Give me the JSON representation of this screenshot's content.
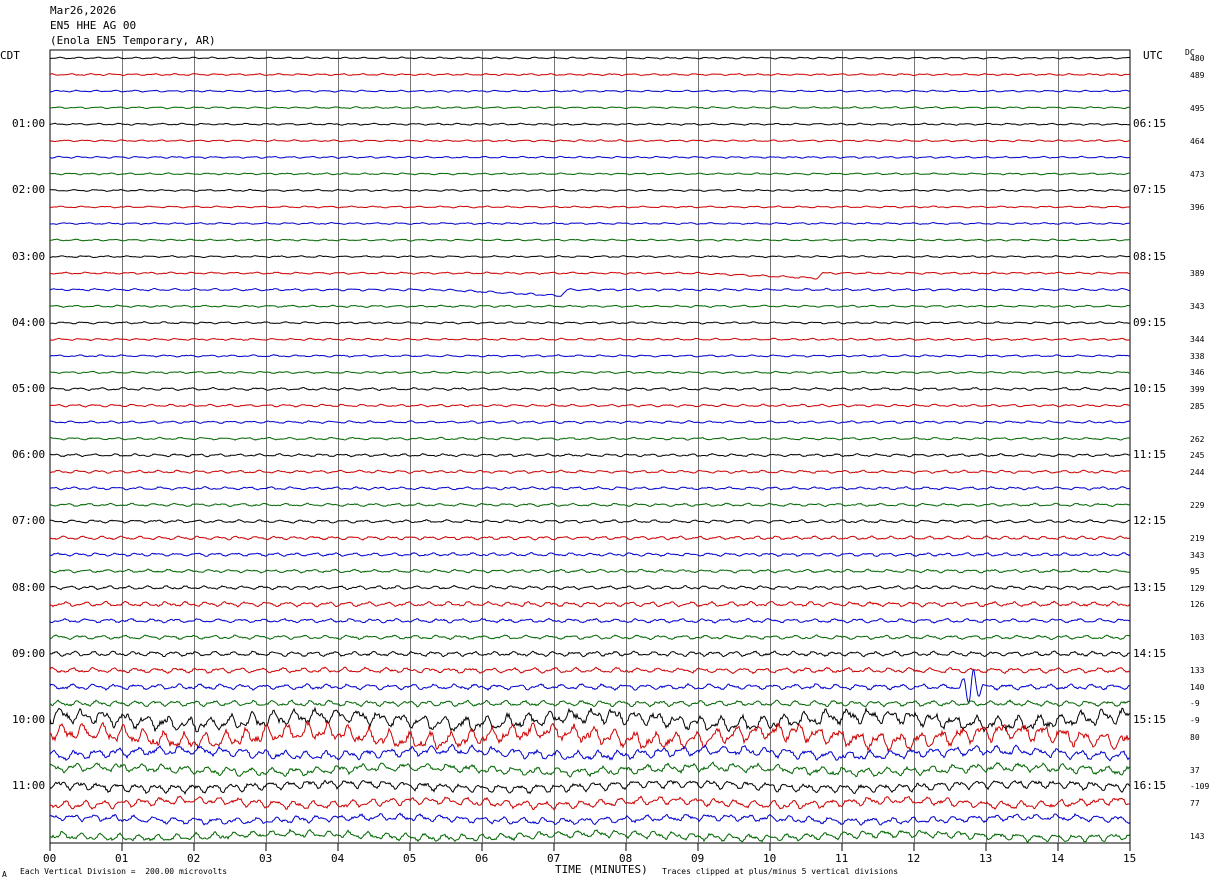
{
  "header": {
    "date": "Mar26,2026",
    "station": "EN5 HHE AG 00",
    "location": "(Enola EN5 Temporary, AR)"
  },
  "left_tz": "CDT",
  "right_tz": "UTC",
  "dc_label": "DC",
  "footer": {
    "scale": "Each Vertical Division =  200.00 microvolts",
    "clip": "Traces clipped at plus/minus 5 vertical divisions",
    "corner": "A"
  },
  "chart_data": {
    "type": "line",
    "xlabel": "TIME (MINUTES)",
    "xlim": [
      0,
      15
    ],
    "x_ticks": [
      "00",
      "01",
      "02",
      "03",
      "04",
      "05",
      "06",
      "07",
      "08",
      "09",
      "10",
      "11",
      "12",
      "13",
      "14",
      "15"
    ],
    "left_hours": [
      "01:00",
      "02:00",
      "03:00",
      "04:00",
      "05:00",
      "06:00",
      "07:00",
      "08:00",
      "09:00",
      "10:00",
      "11:00"
    ],
    "right_hours": [
      "06:15",
      "07:15",
      "08:15",
      "09:15",
      "10:15",
      "11:15",
      "12:15",
      "13:15",
      "14:15",
      "15:15",
      "16:15"
    ],
    "trace_colors": [
      "#000000",
      "#cc0000",
      "#0000cc",
      "#006600"
    ],
    "dc_values": [
      "480",
      "489",
      "",
      "495",
      "",
      "464",
      "",
      "473",
      "",
      "396",
      "",
      "",
      "",
      "389",
      "",
      "343",
      "",
      "344",
      "338",
      "346",
      "399",
      "285",
      "",
      "262",
      "245",
      "244",
      "",
      "229",
      "",
      "219",
      "343",
      "95",
      "129",
      "126",
      "",
      "103",
      "",
      "133",
      "140",
      "-9",
      "-9",
      "80",
      "",
      "37",
      "-109",
      "77",
      "",
      "143"
    ],
    "amplitudes": [
      0.8,
      0.8,
      0.8,
      0.8,
      0.8,
      0.8,
      0.8,
      0.8,
      0.8,
      0.8,
      0.8,
      0.8,
      0.8,
      0.9,
      1.0,
      0.9,
      0.9,
      0.9,
      0.9,
      0.9,
      1.2,
      1.1,
      1.1,
      1.1,
      1.2,
      1.3,
      1.3,
      1.3,
      1.4,
      1.6,
      1.5,
      1.5,
      1.6,
      2.2,
      1.8,
      1.8,
      2.2,
      2.4,
      2.5,
      2.6,
      7.0,
      8.0,
      4.5,
      4.0,
      4.0,
      3.8,
      3.2,
      3.5
    ],
    "events": [
      {
        "row": 13,
        "x_min": 10.65,
        "kind": "dip",
        "amplitude": 5
      },
      {
        "row": 14,
        "x_min": 7.1,
        "kind": "dip",
        "amplitude": 6
      },
      {
        "row": 38,
        "x_min": 12.8,
        "kind": "spike",
        "amplitude": 22
      }
    ]
  }
}
